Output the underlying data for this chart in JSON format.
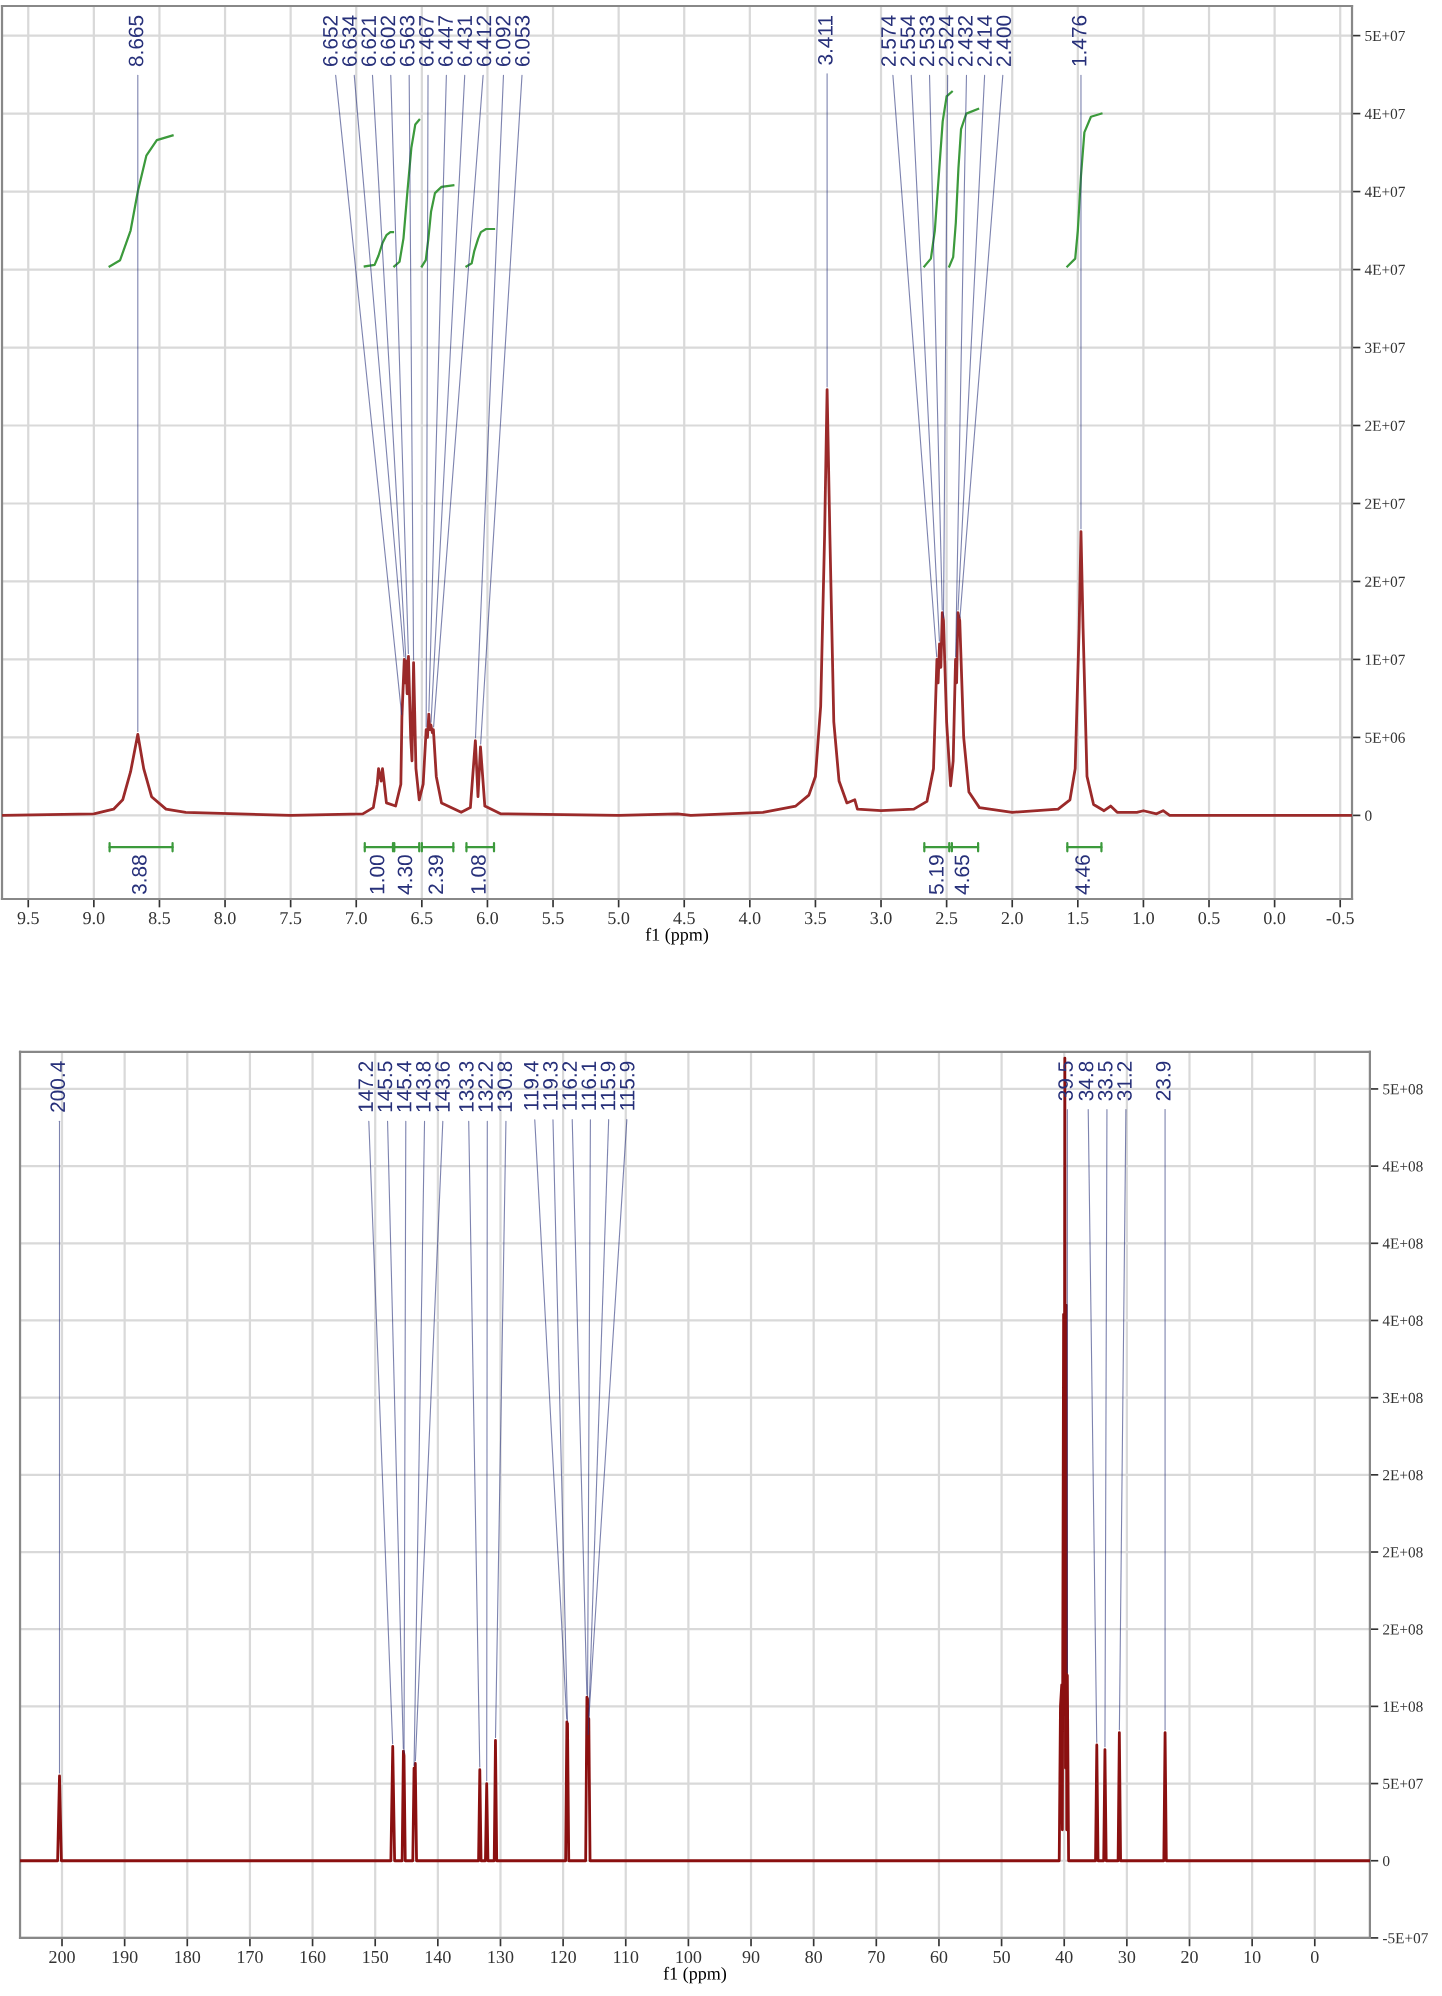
{
  "chart_data": [
    {
      "type": "line",
      "xlabel": "f1 (ppm)",
      "grid": true,
      "xlim": [
        9.7,
        -0.59
      ],
      "xticks": [
        9.5,
        {
          "value": 9,
          "label": "9.0"
        },
        8.5,
        {
          "value": 8,
          "label": "8.0"
        },
        7.5,
        {
          "value": 7,
          "label": "7.0"
        },
        6.5,
        {
          "value": 6,
          "label": "6.0"
        },
        5.5,
        {
          "value": 5,
          "label": "5.0"
        },
        4.5,
        {
          "value": 4,
          "label": "4.0"
        },
        3.5,
        {
          "value": 3,
          "label": "3.0"
        },
        2.5,
        {
          "value": 2,
          "label": "2.0"
        },
        1.5,
        {
          "value": 1,
          "label": "1.0"
        },
        0.5,
        {
          "value": 0,
          "label": "0.0"
        },
        -0.5
      ],
      "ylim": [
        -5360000,
        51900000
      ],
      "yticks": [
        0,
        {
          "value": 5000000,
          "label": "5E+06"
        },
        {
          "value": 10000000,
          "label": "1E+07"
        },
        {
          "value": 15000000,
          "label": "2E+07"
        },
        {
          "value": 20000000,
          "label": "2E+07"
        },
        {
          "value": 25000000,
          "label": "2E+07"
        },
        {
          "value": 30000000,
          "label": "3E+07"
        },
        {
          "value": 35000000,
          "label": "4E+07"
        },
        {
          "value": 40000000,
          "label": "4E+07"
        },
        {
          "value": 45000000,
          "label": "4E+07"
        },
        {
          "value": 50000000,
          "label": "5E+07"
        }
      ],
      "series": [
        {
          "color": "#9b2a2a",
          "x": [
            9.7,
            9.0,
            8.85,
            8.78,
            8.72,
            8.665,
            8.62,
            8.56,
            8.45,
            8.3,
            7.5,
            6.95,
            6.87,
            6.84,
            6.83,
            6.81,
            6.8,
            6.79,
            6.77,
            6.7,
            6.66,
            6.652,
            6.634,
            6.627,
            6.621,
            6.612,
            6.602,
            6.585,
            6.575,
            6.563,
            6.545,
            6.52,
            6.49,
            6.467,
            6.457,
            6.447,
            6.44,
            6.431,
            6.42,
            6.412,
            6.39,
            6.35,
            6.2,
            6.13,
            6.092,
            6.072,
            6.053,
            6.02,
            5.9,
            5.0,
            4.55,
            4.45,
            3.9,
            3.65,
            3.55,
            3.5,
            3.46,
            3.43,
            3.411,
            3.39,
            3.36,
            3.32,
            3.26,
            3.2,
            3.18,
            3.0,
            2.75,
            2.65,
            2.6,
            2.574,
            2.565,
            2.554,
            2.544,
            2.533,
            2.524,
            2.5,
            2.47,
            2.45,
            2.432,
            2.424,
            2.414,
            2.4,
            2.37,
            2.33,
            2.25,
            2.0,
            1.65,
            1.56,
            1.52,
            1.49,
            1.476,
            1.46,
            1.43,
            1.38,
            1.3,
            1.25,
            1.2,
            1.05,
            1.0,
            0.9,
            0.85,
            0.8,
            -0.59
          ],
          "values": [
            0,
            100000,
            400000,
            1000000,
            2800000,
            5200000,
            3000000,
            1200000,
            400000,
            200000,
            0,
            100000,
            500000,
            2000000,
            3000000,
            2200000,
            3000000,
            2300000,
            800000,
            600000,
            2000000,
            6300000,
            10000000,
            8500000,
            9900000,
            7800000,
            10200000,
            5000000,
            3500000,
            9800000,
            3000000,
            1000000,
            2000000,
            5500000,
            5000000,
            6500000,
            5500000,
            5800000,
            5300000,
            5500000,
            2500000,
            800000,
            200000,
            500000,
            4800000,
            1200000,
            4400000,
            600000,
            100000,
            0,
            100000,
            0,
            200000,
            600000,
            1300000,
            2500000,
            7000000,
            18000000,
            27300000,
            18000000,
            6000000,
            2200000,
            800000,
            1000000,
            400000,
            300000,
            400000,
            900000,
            3000000,
            10000000,
            8500000,
            11000000,
            9500000,
            13000000,
            12500000,
            6000000,
            1900000,
            3500000,
            10000000,
            8500000,
            13000000,
            12500000,
            5000000,
            1500000,
            500000,
            200000,
            400000,
            1000000,
            3000000,
            12000000,
            18200000,
            12000000,
            2500000,
            700000,
            300000,
            600000,
            200000,
            200000,
            300000,
            100000,
            300000,
            0,
            0
          ]
        },
        {
          "color": "#3c9a3c",
          "x": [
            8.88,
            8.8,
            8.72,
            8.665,
            8.6,
            8.52,
            8.4
          ],
          "values": [
            35200000,
            35600000,
            37500000,
            40000000,
            42300000,
            43300000,
            43600000
          ]
        },
        {
          "color": "#3c9a3c",
          "x": [
            6.935,
            6.86,
            6.83,
            6.8,
            6.77,
            6.74,
            6.72
          ],
          "values": [
            35200000,
            35300000,
            35900000,
            36700000,
            37200000,
            37400000,
            37400000
          ]
        },
        {
          "color": "#3c9a3c",
          "x": [
            6.71,
            6.67,
            6.64,
            6.61,
            6.58,
            6.55,
            6.52
          ],
          "values": [
            35200000,
            35500000,
            37000000,
            40000000,
            42800000,
            44300000,
            44600000
          ]
        },
        {
          "color": "#3c9a3c",
          "x": [
            6.5,
            6.47,
            6.45,
            6.43,
            6.4,
            6.35,
            6.26
          ],
          "values": [
            35200000,
            35600000,
            37000000,
            38700000,
            39900000,
            40300000,
            40400000
          ]
        },
        {
          "color": "#3c9a3c",
          "x": [
            6.16,
            6.12,
            6.1,
            6.07,
            6.05,
            6.01,
            5.95
          ],
          "values": [
            35200000,
            35400000,
            36200000,
            37000000,
            37400000,
            37600000,
            37600000
          ]
        },
        {
          "color": "#3c9a3c",
          "x": [
            2.67,
            2.62,
            2.59,
            2.56,
            2.53,
            2.5,
            2.46
          ],
          "values": [
            35200000,
            35700000,
            37500000,
            41000000,
            44500000,
            46100000,
            46400000
          ]
        },
        {
          "color": "#3c9a3c",
          "x": [
            2.48,
            2.45,
            2.43,
            2.41,
            2.39,
            2.35,
            2.26
          ],
          "values": [
            35200000,
            35800000,
            38000000,
            41500000,
            44000000,
            45000000,
            45300000
          ]
        },
        {
          "color": "#3c9a3c",
          "x": [
            1.58,
            1.52,
            1.5,
            1.476,
            1.45,
            1.4,
            1.32
          ],
          "values": [
            35200000,
            35700000,
            37500000,
            41000000,
            43800000,
            44800000,
            45000000
          ]
        }
      ],
      "annotations": [
        {
          "text": "8.665",
          "x": 8.665,
          "y": 5200000
        },
        {
          "text": "6.652",
          "x": 6.652,
          "y": 6300000
        },
        {
          "text": "6.634",
          "x": 6.634,
          "y": 10000000
        },
        {
          "text": "6.621",
          "x": 6.621,
          "y": 9900000
        },
        {
          "text": "6.602",
          "x": 6.602,
          "y": 10200000
        },
        {
          "text": "6.563",
          "x": 6.563,
          "y": 9800000
        },
        {
          "text": "6.467",
          "x": 6.467,
          "y": 5500000
        },
        {
          "text": "6.447",
          "x": 6.447,
          "y": 6500000
        },
        {
          "text": "6.431",
          "x": 6.431,
          "y": 5800000
        },
        {
          "text": "6.412",
          "x": 6.412,
          "y": 5500000
        },
        {
          "text": "6.092",
          "x": 6.092,
          "y": 4800000
        },
        {
          "text": "6.053",
          "x": 6.053,
          "y": 4400000
        },
        {
          "text": "3.411",
          "x": 3.411,
          "y": 27300000
        },
        {
          "text": "2.574",
          "x": 2.574,
          "y": 10000000
        },
        {
          "text": "2.554",
          "x": 2.554,
          "y": 11000000
        },
        {
          "text": "2.533",
          "x": 2.533,
          "y": 13000000
        },
        {
          "text": "2.524",
          "x": 2.524,
          "y": 12500000
        },
        {
          "text": "2.432",
          "x": 2.432,
          "y": 10000000
        },
        {
          "text": "2.414",
          "x": 2.414,
          "y": 13000000
        },
        {
          "text": "2.400",
          "x": 2.4,
          "y": 12500000
        },
        {
          "text": "1.476",
          "x": 1.476,
          "y": 18200000
        },
        "3.88",
        "1.00",
        "4.30",
        "2.39",
        "1.08",
        "5.19",
        "4.65",
        "4.46"
      ]
    },
    {
      "type": "line",
      "xlabel": "f1 (ppm)",
      "grid": true,
      "xlim": [
        206.7,
        -8.8
      ],
      "xticks": [
        200,
        190,
        180,
        170,
        160,
        150,
        140,
        130,
        120,
        110,
        100,
        90,
        80,
        70,
        60,
        50,
        40,
        30,
        20,
        10,
        0
      ],
      "ylim": [
        -50000000,
        524000000
      ],
      "yticks": [
        {
          "value": -50000000,
          "label": "-5E+07"
        },
        0,
        {
          "value": 50000000,
          "label": "5E+07"
        },
        {
          "value": 100000000,
          "label": "1E+08"
        },
        {
          "value": 150000000,
          "label": "2E+08"
        },
        {
          "value": 200000000,
          "label": "2E+08"
        },
        {
          "value": 250000000,
          "label": "2E+08"
        },
        {
          "value": 300000000,
          "label": "3E+08"
        },
        {
          "value": 350000000,
          "label": "4E+08"
        },
        {
          "value": 400000000,
          "label": "4E+08"
        },
        {
          "value": 450000000,
          "label": "4E+08"
        },
        {
          "value": 500000000,
          "label": "5E+08"
        }
      ],
      "series": [
        {
          "color": "#8b1010",
          "x": [
            206.7,
            200.7,
            200.4,
            200.1,
            147.5,
            147.2,
            146.9,
            145.7,
            145.5,
            145.4,
            145.2,
            144.0,
            143.8,
            143.7,
            143.6,
            143.4,
            133.5,
            133.3,
            133.1,
            132.4,
            132.2,
            132.0,
            131.0,
            130.8,
            130.6,
            119.6,
            119.4,
            119.35,
            119.3,
            119.1,
            116.4,
            116.2,
            116.15,
            116.1,
            116.0,
            115.9,
            115.7,
            40.8,
            40.6,
            40.4,
            40.3,
            40.1,
            40.0,
            39.9,
            39.8,
            39.7,
            39.6,
            39.5,
            39.3,
            35.0,
            34.8,
            34.6,
            33.7,
            33.5,
            33.3,
            31.4,
            31.2,
            31.0,
            24.1,
            23.9,
            23.7,
            -8.8
          ],
          "values": [
            0,
            0,
            55000000,
            0,
            0,
            74000000,
            0,
            0,
            71000000,
            68000000,
            0,
            0,
            60000000,
            50000000,
            63000000,
            0,
            0,
            59000000,
            0,
            0,
            50000000,
            0,
            0,
            78000000,
            0,
            0,
            90000000,
            85000000,
            89000000,
            0,
            0,
            106000000,
            100000000,
            105000000,
            80000000,
            92000000,
            0,
            0,
            100000000,
            114000000,
            20000000,
            354000000,
            100000000,
            520000000,
            60000000,
            360000000,
            20000000,
            120000000,
            0,
            0,
            75000000,
            0,
            0,
            72000000,
            0,
            0,
            83000000,
            0,
            0,
            83000000,
            0,
            0
          ]
        }
      ],
      "annotations": [
        {
          "text": "200.4",
          "x": 200.4,
          "y": 55000000
        },
        {
          "text": "147.2",
          "x": 147.2,
          "y": 74000000
        },
        {
          "text": "145.5",
          "x": 145.5,
          "y": 71000000
        },
        {
          "text": "145.4",
          "x": 145.4,
          "y": 68000000
        },
        {
          "text": "143.8",
          "x": 143.8,
          "y": 60000000
        },
        {
          "text": "143.6",
          "x": 143.6,
          "y": 63000000
        },
        {
          "text": "133.3",
          "x": 133.3,
          "y": 59000000
        },
        {
          "text": "132.2",
          "x": 132.2,
          "y": 50000000
        },
        {
          "text": "130.8",
          "x": 130.8,
          "y": 78000000
        },
        {
          "text": "119.4",
          "x": 119.4,
          "y": 90000000
        },
        {
          "text": "119.3",
          "x": 119.3,
          "y": 89000000
        },
        {
          "text": "116.2",
          "x": 116.2,
          "y": 106000000
        },
        {
          "text": "116.1",
          "x": 116.1,
          "y": 105000000
        },
        {
          "text": "115.9",
          "x": 116.0,
          "y": 80000000
        },
        {
          "text": "115.9",
          "x": 115.9,
          "y": 92000000
        },
        {
          "text": "39.5",
          "x": 39.5,
          "y": 120000000
        },
        {
          "text": "34.8",
          "x": 34.8,
          "y": 75000000
        },
        {
          "text": "33.5",
          "x": 33.5,
          "y": 72000000
        },
        {
          "text": "31.2",
          "x": 31.2,
          "y": 83000000
        },
        {
          "text": "23.9",
          "x": 23.9,
          "y": 83000000
        }
      ]
    }
  ]
}
